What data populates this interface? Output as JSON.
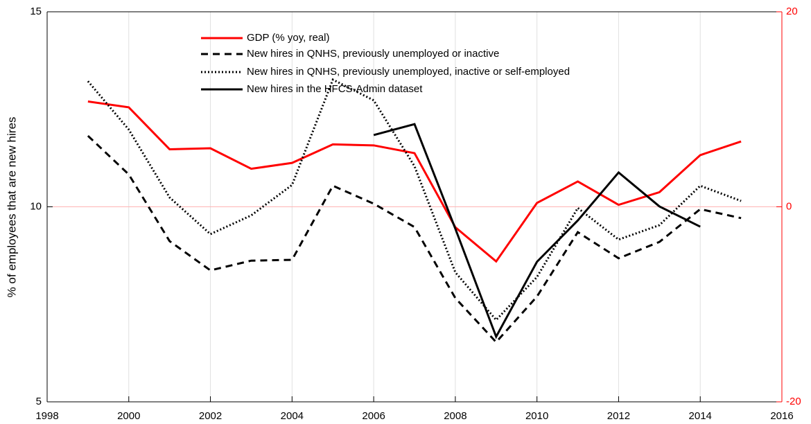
{
  "chart_data": {
    "type": "line",
    "y_label": "% of employees that are new hires",
    "x": [
      1999,
      2000,
      2001,
      2002,
      2003,
      2004,
      2005,
      2006,
      2007,
      2008,
      2009,
      2010,
      2011,
      2012,
      2013,
      2014,
      2015
    ],
    "xlim": [
      1998,
      2016
    ],
    "xticks": [
      1998,
      2000,
      2002,
      2004,
      2006,
      2008,
      2010,
      2012,
      2014,
      2016
    ],
    "ylim": [
      5,
      15
    ],
    "yticks": [
      5,
      10,
      15
    ],
    "y2lim": [
      -20,
      20
    ],
    "y2ticks": [
      -20,
      0,
      20
    ],
    "y2_color": "#ff0000",
    "y2_reference_line": {
      "value": 0,
      "color": "#ffb3b3"
    },
    "grid": "x",
    "series": [
      {
        "name": "GDP (% yoy, real)",
        "color": "#ff0000",
        "style": "solid",
        "axis": "y2",
        "values": [
          10.8,
          10.2,
          5.9,
          6.0,
          3.9,
          4.5,
          6.4,
          6.3,
          5.5,
          -2.1,
          -5.6,
          0.4,
          2.6,
          0.2,
          1.5,
          5.3,
          6.7
        ]
      },
      {
        "name": "New hires in QNHS, previously unemployed or inactive",
        "color": "#000000",
        "style": "dashed",
        "values": [
          11.82,
          10.83,
          9.12,
          8.37,
          8.62,
          8.64,
          10.54,
          10.08,
          9.48,
          7.66,
          6.53,
          7.7,
          9.35,
          8.68,
          9.1,
          9.94,
          9.71
        ]
      },
      {
        "name": "New hires in QNHS, previously unemployed, inactive or self-employed",
        "color": "#000000",
        "style": "dotted",
        "values": [
          13.22,
          11.98,
          10.24,
          9.3,
          9.78,
          10.56,
          13.26,
          12.73,
          11.04,
          8.32,
          7.1,
          8.2,
          9.97,
          9.16,
          9.53,
          10.54,
          10.15
        ]
      },
      {
        "name": "New hires in the HFCS-Admin dataset",
        "color": "#000000",
        "style": "solid",
        "values": [
          null,
          null,
          null,
          null,
          null,
          null,
          null,
          11.84,
          12.12,
          9.44,
          6.67,
          8.59,
          9.65,
          10.88,
          10.01,
          9.49,
          null
        ]
      }
    ]
  }
}
